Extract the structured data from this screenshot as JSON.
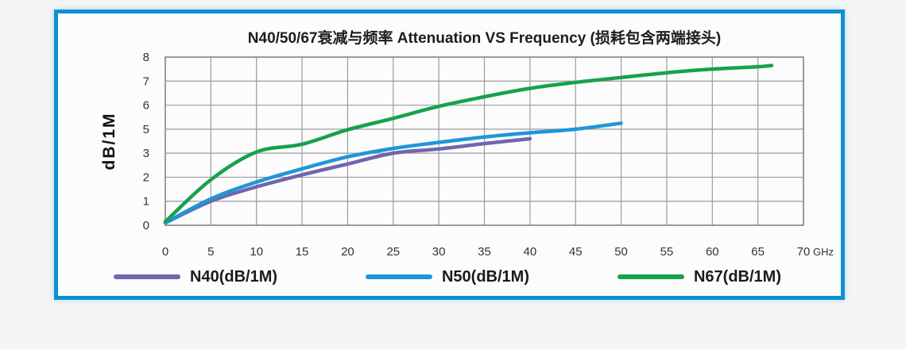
{
  "title": "N40/50/67衰减与频率 Attenuation VS Frequency (损耗包含两端接头)",
  "y_axis_title": "dB/1M",
  "x_axis_unit": "GHz",
  "colors": {
    "page_bg": "#f4f5f6",
    "card_bg": "#fcfcfd",
    "frame": "#0e90d3",
    "grid": "#9b9ba0",
    "plot_border": "#87878c",
    "tick_text": "#333333",
    "n40": "#7065ae",
    "n50": "#1e96d6",
    "n67": "#17a14e"
  },
  "chart_data": {
    "type": "line",
    "title": "N40/50/67衰减与频率 Attenuation VS Frequency (损耗包含两端接头)",
    "ylabel": "dB/1M",
    "x_unit": "GHz",
    "xlim": [
      0,
      70
    ],
    "x_ticks": [
      0,
      5,
      10,
      15,
      20,
      25,
      30,
      35,
      40,
      45,
      50,
      55,
      60,
      65,
      70
    ],
    "y_tick_labels_bottom_to_top": [
      "0",
      "1",
      "2",
      "3",
      "5",
      "6",
      "7",
      "8"
    ],
    "y_axis_note": "axis printed with equal spacing but label 4 is skipped",
    "grid": true,
    "legend_position": "bottom",
    "series": [
      {
        "name": "N40(dB/1M)",
        "color": "#7065ae",
        "x": [
          0,
          5,
          10,
          15,
          20,
          25,
          30,
          35,
          40
        ],
        "values": [
          0.1,
          1.0,
          1.6,
          2.1,
          2.55,
          3.0,
          3.35,
          3.8,
          4.2
        ]
      },
      {
        "name": "N50(dB/1M)",
        "color": "#1e96d6",
        "x": [
          0,
          5,
          10,
          15,
          20,
          25,
          30,
          35,
          40,
          45,
          50
        ],
        "values": [
          0.1,
          1.1,
          1.8,
          2.35,
          2.85,
          3.4,
          3.9,
          4.35,
          4.7,
          5.0,
          5.25
        ]
      },
      {
        "name": "N67(dB/1M)",
        "color": "#17a14e",
        "x": [
          0,
          5,
          10,
          15,
          20,
          25,
          30,
          35,
          40,
          45,
          50,
          55,
          60,
          65,
          66.5
        ],
        "values": [
          0.15,
          1.9,
          3.1,
          3.75,
          4.95,
          5.45,
          5.95,
          6.35,
          6.7,
          6.95,
          7.15,
          7.35,
          7.5,
          7.6,
          7.65
        ]
      }
    ]
  },
  "legend": {
    "items": [
      {
        "label": "N40(dB/1M)",
        "color": "#7065ae"
      },
      {
        "label": "N50(dB/1M)",
        "color": "#1e96d6"
      },
      {
        "label": "N67(dB/1M)",
        "color": "#17a14e"
      }
    ]
  }
}
